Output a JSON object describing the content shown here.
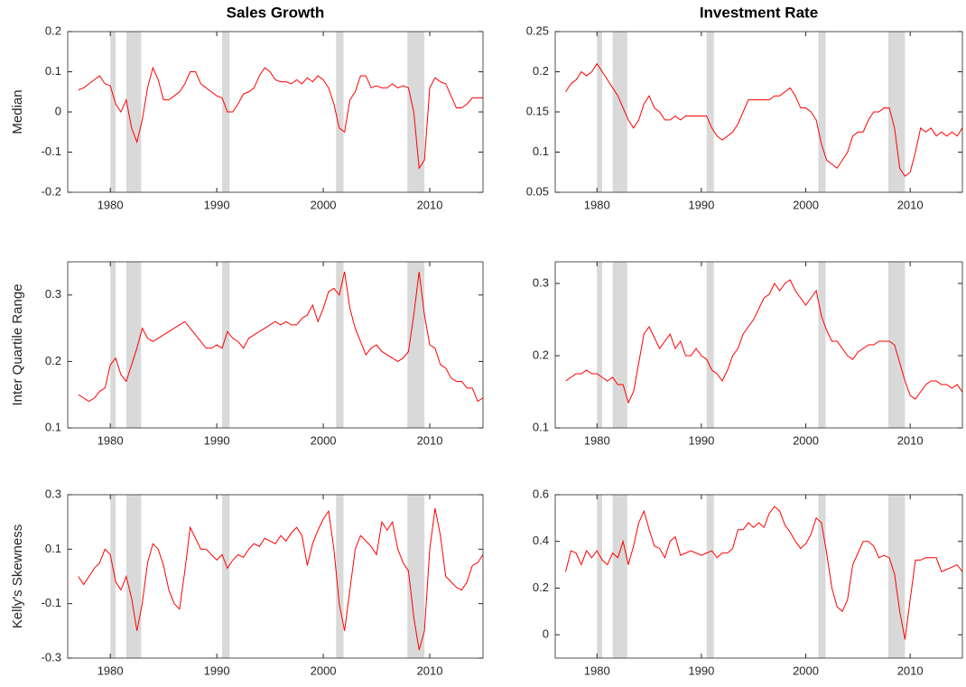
{
  "chart_data": [
    {
      "type": "line",
      "title": "Sales Growth",
      "ylabel": "Median",
      "color": "#ff0000",
      "shade_color": "#d9d9d9",
      "shading": [
        [
          1980,
          1980.5
        ],
        [
          1981.5,
          1982.9
        ],
        [
          1990.5,
          1991.2
        ],
        [
          2001.2,
          2001.9
        ],
        [
          2007.9,
          2009.5
        ]
      ],
      "xlim": [
        1976,
        2015
      ],
      "xticks": [
        1980,
        1990,
        2000,
        2010
      ],
      "ylim": [
        -0.2,
        0.2
      ],
      "yticks": [
        -0.2,
        -0.1,
        0,
        0.1,
        0.2
      ],
      "x": [
        1977,
        1977.5,
        1978,
        1978.5,
        1979,
        1979.5,
        1980,
        1980.5,
        1981,
        1981.5,
        1982,
        1982.5,
        1983,
        1983.5,
        1984,
        1984.5,
        1985,
        1985.5,
        1986,
        1986.5,
        1987,
        1987.5,
        1988,
        1988.5,
        1989,
        1989.5,
        1990,
        1990.5,
        1991,
        1991.5,
        1992,
        1992.5,
        1993,
        1993.5,
        1994,
        1994.5,
        1995,
        1995.5,
        1996,
        1996.5,
        1997,
        1997.5,
        1998,
        1998.5,
        1999,
        1999.5,
        2000,
        2000.5,
        2001,
        2001.5,
        2002,
        2002.5,
        2003,
        2003.5,
        2004,
        2004.5,
        2005,
        2005.5,
        2006,
        2006.5,
        2007,
        2007.5,
        2008,
        2008.5,
        2009,
        2009.5,
        2010,
        2010.5,
        2011,
        2011.5,
        2012,
        2012.5,
        2013,
        2013.5,
        2014,
        2014.5,
        2015
      ],
      "values": [
        0.055,
        0.06,
        0.07,
        0.08,
        0.09,
        0.07,
        0.065,
        0.02,
        0.0,
        0.03,
        -0.04,
        -0.075,
        -0.02,
        0.06,
        0.11,
        0.08,
        0.03,
        0.03,
        0.04,
        0.05,
        0.07,
        0.1,
        0.1,
        0.07,
        0.06,
        0.05,
        0.04,
        0.035,
        0.0,
        0.0,
        0.02,
        0.045,
        0.05,
        0.06,
        0.09,
        0.11,
        0.1,
        0.08,
        0.075,
        0.075,
        0.07,
        0.08,
        0.07,
        0.085,
        0.075,
        0.09,
        0.08,
        0.06,
        0.02,
        -0.04,
        -0.05,
        0.03,
        0.05,
        0.09,
        0.09,
        0.06,
        0.065,
        0.06,
        0.06,
        0.07,
        0.06,
        0.065,
        0.06,
        0.0,
        -0.14,
        -0.12,
        0.06,
        0.085,
        0.075,
        0.07,
        0.04,
        0.01,
        0.01,
        0.02,
        0.035,
        0.035,
        0.035
      ]
    },
    {
      "type": "line",
      "title": "Investment Rate",
      "color": "#ff0000",
      "shade_color": "#d9d9d9",
      "shading": [
        [
          1980,
          1980.5
        ],
        [
          1981.5,
          1982.9
        ],
        [
          1990.5,
          1991.2
        ],
        [
          2001.2,
          2001.9
        ],
        [
          2007.9,
          2009.5
        ]
      ],
      "xlim": [
        1976,
        2015
      ],
      "xticks": [
        1980,
        1990,
        2000,
        2010
      ],
      "ylim": [
        0.05,
        0.25
      ],
      "yticks": [
        0.05,
        0.1,
        0.15,
        0.2,
        0.25
      ],
      "x": [
        1977,
        1977.5,
        1978,
        1978.5,
        1979,
        1979.5,
        1980,
        1980.5,
        1981,
        1981.5,
        1982,
        1982.5,
        1983,
        1983.5,
        1984,
        1984.5,
        1985,
        1985.5,
        1986,
        1986.5,
        1987,
        1987.5,
        1988,
        1988.5,
        1989,
        1989.5,
        1990,
        1990.5,
        1991,
        1991.5,
        1992,
        1992.5,
        1993,
        1993.5,
        1994,
        1994.5,
        1995,
        1995.5,
        1996,
        1996.5,
        1997,
        1997.5,
        1998,
        1998.5,
        1999,
        1999.5,
        2000,
        2000.5,
        2001,
        2001.5,
        2002,
        2002.5,
        2003,
        2003.5,
        2004,
        2004.5,
        2005,
        2005.5,
        2006,
        2006.5,
        2007,
        2007.5,
        2008,
        2008.5,
        2009,
        2009.5,
        2010,
        2010.5,
        2011,
        2011.5,
        2012,
        2012.5,
        2013,
        2013.5,
        2014,
        2014.5,
        2015
      ],
      "values": [
        0.175,
        0.185,
        0.19,
        0.2,
        0.195,
        0.2,
        0.21,
        0.2,
        0.19,
        0.18,
        0.17,
        0.155,
        0.14,
        0.13,
        0.14,
        0.16,
        0.17,
        0.155,
        0.15,
        0.14,
        0.14,
        0.145,
        0.14,
        0.145,
        0.145,
        0.145,
        0.145,
        0.145,
        0.13,
        0.12,
        0.115,
        0.12,
        0.125,
        0.135,
        0.15,
        0.165,
        0.165,
        0.165,
        0.165,
        0.165,
        0.17,
        0.17,
        0.175,
        0.18,
        0.17,
        0.155,
        0.155,
        0.15,
        0.14,
        0.11,
        0.09,
        0.085,
        0.08,
        0.09,
        0.1,
        0.12,
        0.125,
        0.125,
        0.14,
        0.15,
        0.15,
        0.155,
        0.155,
        0.13,
        0.08,
        0.07,
        0.075,
        0.1,
        0.13,
        0.125,
        0.13,
        0.12,
        0.125,
        0.12,
        0.125,
        0.12,
        0.13
      ]
    },
    {
      "type": "line",
      "ylabel": "Inter Quartile Range",
      "color": "#ff0000",
      "shade_color": "#d9d9d9",
      "shading": [
        [
          1980,
          1980.5
        ],
        [
          1981.5,
          1982.9
        ],
        [
          1990.5,
          1991.2
        ],
        [
          2001.2,
          2001.9
        ],
        [
          2007.9,
          2009.5
        ]
      ],
      "xlim": [
        1976,
        2015
      ],
      "xticks": [
        1980,
        1990,
        2000,
        2010
      ],
      "ylim": [
        0.1,
        0.35
      ],
      "yticks": [
        0.1,
        0.2,
        0.3
      ],
      "x": [
        1977,
        1977.5,
        1978,
        1978.5,
        1979,
        1979.5,
        1980,
        1980.5,
        1981,
        1981.5,
        1982,
        1982.5,
        1983,
        1983.5,
        1984,
        1984.5,
        1985,
        1985.5,
        1986,
        1986.5,
        1987,
        1987.5,
        1988,
        1988.5,
        1989,
        1989.5,
        1990,
        1990.5,
        1991,
        1991.5,
        1992,
        1992.5,
        1993,
        1993.5,
        1994,
        1994.5,
        1995,
        1995.5,
        1996,
        1996.5,
        1997,
        1997.5,
        1998,
        1998.5,
        1999,
        1999.5,
        2000,
        2000.5,
        2001,
        2001.5,
        2002,
        2002.5,
        2003,
        2003.5,
        2004,
        2004.5,
        2005,
        2005.5,
        2006,
        2006.5,
        2007,
        2007.5,
        2008,
        2008.5,
        2009,
        2009.5,
        2010,
        2010.5,
        2011,
        2011.5,
        2012,
        2012.5,
        2013,
        2013.5,
        2014,
        2014.5,
        2015
      ],
      "values": [
        0.15,
        0.145,
        0.14,
        0.145,
        0.155,
        0.16,
        0.195,
        0.205,
        0.18,
        0.17,
        0.195,
        0.22,
        0.25,
        0.235,
        0.23,
        0.235,
        0.24,
        0.245,
        0.25,
        0.255,
        0.26,
        0.25,
        0.24,
        0.23,
        0.22,
        0.22,
        0.225,
        0.22,
        0.245,
        0.235,
        0.23,
        0.22,
        0.235,
        0.24,
        0.245,
        0.25,
        0.255,
        0.26,
        0.255,
        0.26,
        0.255,
        0.255,
        0.265,
        0.27,
        0.285,
        0.26,
        0.28,
        0.305,
        0.31,
        0.3,
        0.335,
        0.28,
        0.25,
        0.23,
        0.21,
        0.22,
        0.225,
        0.215,
        0.21,
        0.205,
        0.2,
        0.205,
        0.215,
        0.27,
        0.335,
        0.27,
        0.225,
        0.22,
        0.195,
        0.19,
        0.175,
        0.17,
        0.17,
        0.16,
        0.16,
        0.14,
        0.145
      ]
    },
    {
      "type": "line",
      "color": "#ff0000",
      "shade_color": "#d9d9d9",
      "shading": [
        [
          1980,
          1980.5
        ],
        [
          1981.5,
          1982.9
        ],
        [
          1990.5,
          1991.2
        ],
        [
          2001.2,
          2001.9
        ],
        [
          2007.9,
          2009.5
        ]
      ],
      "xlim": [
        1976,
        2015
      ],
      "xticks": [
        1980,
        1990,
        2000,
        2010
      ],
      "ylim": [
        0.1,
        0.33
      ],
      "yticks": [
        0.1,
        0.2,
        0.3
      ],
      "x": [
        1977,
        1977.5,
        1978,
        1978.5,
        1979,
        1979.5,
        1980,
        1980.5,
        1981,
        1981.5,
        1982,
        1982.5,
        1983,
        1983.5,
        1984,
        1984.5,
        1985,
        1985.5,
        1986,
        1986.5,
        1987,
        1987.5,
        1988,
        1988.5,
        1989,
        1989.5,
        1990,
        1990.5,
        1991,
        1991.5,
        1992,
        1992.5,
        1993,
        1993.5,
        1994,
        1994.5,
        1995,
        1995.5,
        1996,
        1996.5,
        1997,
        1997.5,
        1998,
        1998.5,
        1999,
        1999.5,
        2000,
        2000.5,
        2001,
        2001.5,
        2002,
        2002.5,
        2003,
        2003.5,
        2004,
        2004.5,
        2005,
        2005.5,
        2006,
        2006.5,
        2007,
        2007.5,
        2008,
        2008.5,
        2009,
        2009.5,
        2010,
        2010.5,
        2011,
        2011.5,
        2012,
        2012.5,
        2013,
        2013.5,
        2014,
        2014.5,
        2015
      ],
      "values": [
        0.165,
        0.17,
        0.175,
        0.175,
        0.18,
        0.175,
        0.175,
        0.17,
        0.165,
        0.17,
        0.16,
        0.16,
        0.135,
        0.15,
        0.19,
        0.23,
        0.24,
        0.225,
        0.21,
        0.22,
        0.23,
        0.21,
        0.22,
        0.2,
        0.2,
        0.21,
        0.2,
        0.195,
        0.18,
        0.175,
        0.165,
        0.18,
        0.2,
        0.21,
        0.23,
        0.24,
        0.25,
        0.265,
        0.28,
        0.285,
        0.3,
        0.29,
        0.3,
        0.305,
        0.29,
        0.28,
        0.27,
        0.28,
        0.29,
        0.255,
        0.235,
        0.22,
        0.22,
        0.21,
        0.2,
        0.195,
        0.205,
        0.21,
        0.215,
        0.215,
        0.22,
        0.22,
        0.22,
        0.215,
        0.19,
        0.165,
        0.145,
        0.14,
        0.15,
        0.16,
        0.165,
        0.165,
        0.16,
        0.16,
        0.155,
        0.16,
        0.15
      ]
    },
    {
      "type": "line",
      "ylabel": "Kelly's Skewness",
      "color": "#ff0000",
      "shade_color": "#d9d9d9",
      "shading": [
        [
          1980,
          1980.5
        ],
        [
          1981.5,
          1982.9
        ],
        [
          1990.5,
          1991.2
        ],
        [
          2001.2,
          2001.9
        ],
        [
          2007.9,
          2009.5
        ]
      ],
      "xlim": [
        1976,
        2015
      ],
      "xticks": [
        1980,
        1990,
        2000,
        2010
      ],
      "ylim": [
        -0.3,
        0.3
      ],
      "yticks": [
        -0.3,
        -0.1,
        0.1,
        0.3
      ],
      "x": [
        1977,
        1977.5,
        1978,
        1978.5,
        1979,
        1979.5,
        1980,
        1980.5,
        1981,
        1981.5,
        1982,
        1982.5,
        1983,
        1983.5,
        1984,
        1984.5,
        1985,
        1985.5,
        1986,
        1986.5,
        1987,
        1987.5,
        1988,
        1988.5,
        1989,
        1989.5,
        1990,
        1990.5,
        1991,
        1991.5,
        1992,
        1992.5,
        1993,
        1993.5,
        1994,
        1994.5,
        1995,
        1995.5,
        1996,
        1996.5,
        1997,
        1997.5,
        1998,
        1998.5,
        1999,
        1999.5,
        2000,
        2000.5,
        2001,
        2001.5,
        2002,
        2002.5,
        2003,
        2003.5,
        2004,
        2004.5,
        2005,
        2005.5,
        2006,
        2006.5,
        2007,
        2007.5,
        2008,
        2008.5,
        2009,
        2009.5,
        2010,
        2010.5,
        2011,
        2011.5,
        2012,
        2012.5,
        2013,
        2013.5,
        2014,
        2014.5,
        2015
      ],
      "values": [
        0.0,
        -0.03,
        0.0,
        0.03,
        0.05,
        0.1,
        0.08,
        -0.02,
        -0.05,
        0.0,
        -0.08,
        -0.2,
        -0.1,
        0.05,
        0.12,
        0.1,
        0.04,
        -0.05,
        -0.1,
        -0.12,
        0.02,
        0.18,
        0.14,
        0.1,
        0.1,
        0.08,
        0.06,
        0.08,
        0.03,
        0.06,
        0.08,
        0.07,
        0.1,
        0.12,
        0.11,
        0.14,
        0.13,
        0.12,
        0.15,
        0.13,
        0.16,
        0.18,
        0.15,
        0.04,
        0.12,
        0.17,
        0.21,
        0.24,
        0.1,
        -0.1,
        -0.2,
        -0.05,
        0.1,
        0.15,
        0.13,
        0.11,
        0.08,
        0.2,
        0.17,
        0.2,
        0.1,
        0.05,
        0.02,
        -0.15,
        -0.27,
        -0.2,
        0.1,
        0.25,
        0.15,
        0.0,
        -0.02,
        -0.04,
        -0.05,
        -0.02,
        0.04,
        0.05,
        0.08
      ]
    },
    {
      "type": "line",
      "color": "#ff0000",
      "shade_color": "#d9d9d9",
      "shading": [
        [
          1980,
          1980.5
        ],
        [
          1981.5,
          1982.9
        ],
        [
          1990.5,
          1991.2
        ],
        [
          2001.2,
          2001.9
        ],
        [
          2007.9,
          2009.5
        ]
      ],
      "xlim": [
        1976,
        2015
      ],
      "xticks": [
        1980,
        1990,
        2000,
        2010
      ],
      "ylim": [
        -0.1,
        0.6
      ],
      "yticks": [
        0,
        0.2,
        0.4,
        0.6
      ],
      "x": [
        1977,
        1977.5,
        1978,
        1978.5,
        1979,
        1979.5,
        1980,
        1980.5,
        1981,
        1981.5,
        1982,
        1982.5,
        1983,
        1983.5,
        1984,
        1984.5,
        1985,
        1985.5,
        1986,
        1986.5,
        1987,
        1987.5,
        1988,
        1988.5,
        1989,
        1989.5,
        1990,
        1990.5,
        1991,
        1991.5,
        1992,
        1992.5,
        1993,
        1993.5,
        1994,
        1994.5,
        1995,
        1995.5,
        1996,
        1996.5,
        1997,
        1997.5,
        1998,
        1998.5,
        1999,
        1999.5,
        2000,
        2000.5,
        2001,
        2001.5,
        2002,
        2002.5,
        2003,
        2003.5,
        2004,
        2004.5,
        2005,
        2005.5,
        2006,
        2006.5,
        2007,
        2007.5,
        2008,
        2008.5,
        2009,
        2009.5,
        2010,
        2010.5,
        2011,
        2011.5,
        2012,
        2012.5,
        2013,
        2013.5,
        2014,
        2014.5,
        2015
      ],
      "values": [
        0.27,
        0.36,
        0.35,
        0.3,
        0.36,
        0.33,
        0.36,
        0.32,
        0.3,
        0.35,
        0.33,
        0.4,
        0.3,
        0.38,
        0.48,
        0.53,
        0.45,
        0.38,
        0.37,
        0.33,
        0.4,
        0.42,
        0.34,
        0.35,
        0.36,
        0.35,
        0.34,
        0.35,
        0.36,
        0.33,
        0.35,
        0.35,
        0.37,
        0.45,
        0.45,
        0.48,
        0.46,
        0.48,
        0.46,
        0.52,
        0.55,
        0.53,
        0.47,
        0.44,
        0.4,
        0.37,
        0.39,
        0.43,
        0.5,
        0.48,
        0.35,
        0.2,
        0.12,
        0.1,
        0.15,
        0.3,
        0.35,
        0.4,
        0.4,
        0.38,
        0.33,
        0.34,
        0.33,
        0.26,
        0.1,
        -0.02,
        0.15,
        0.32,
        0.32,
        0.33,
        0.33,
        0.33,
        0.27,
        0.28,
        0.29,
        0.3,
        0.27
      ]
    }
  ]
}
